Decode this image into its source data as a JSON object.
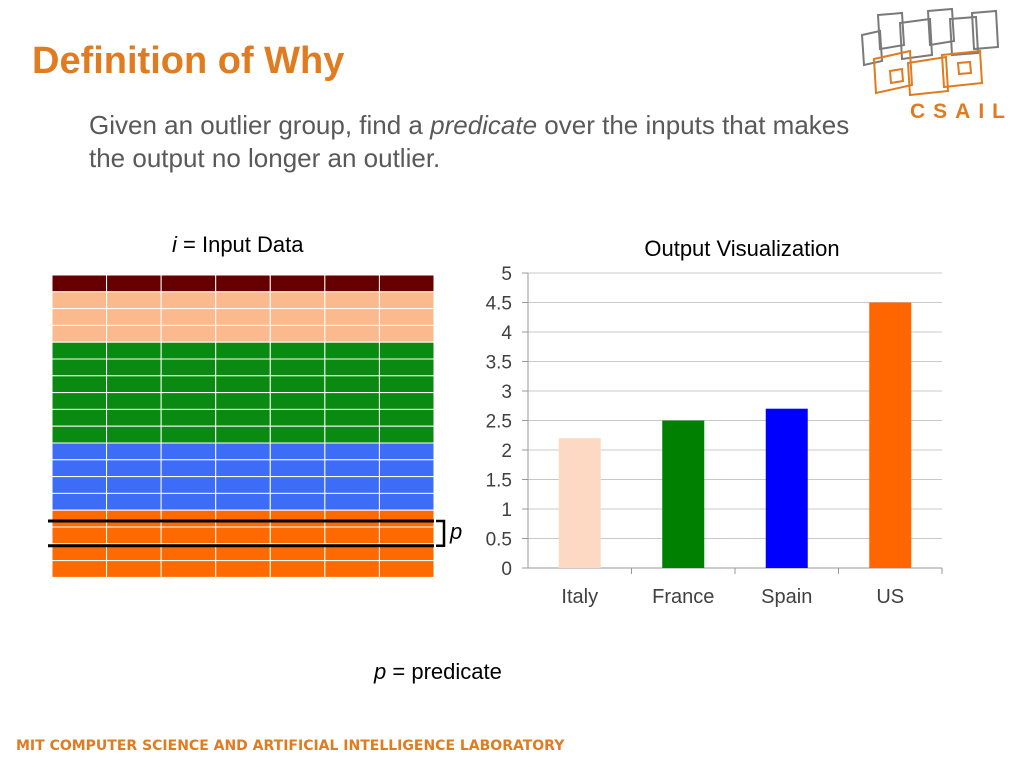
{
  "slide": {
    "title": "Definition of Why",
    "subtitle_pre": "Given an outlier group, find a ",
    "subtitle_em": "predicate",
    "subtitle_post": " over the inputs that makes the output no longer an outlier.",
    "footer": "MIT COMPUTER SCIENCE AND ARTIFICIAL INTELLIGENCE LABORATORY"
  },
  "logo": {
    "text": "CSAIL",
    "color": "#e07b1f"
  },
  "input_data": {
    "label_var": "i",
    "label_eq": " = ",
    "label_text": "Input Data",
    "columns": 7,
    "row_groups": [
      {
        "color": "#660000",
        "rows": 1
      },
      {
        "color": "#fbb98e",
        "rows": 3
      },
      {
        "color": "#0a8a10",
        "rows": 6
      },
      {
        "color": "#3d6df7",
        "rows": 4
      },
      {
        "color": "#ff6a00",
        "rows": 4
      }
    ],
    "predicate_label": "p"
  },
  "predicate_legend": {
    "var": "p",
    "eq": " = ",
    "text": "predicate"
  },
  "chart_data": {
    "type": "bar",
    "title": "Output Visualization",
    "categories": [
      "Italy",
      "France",
      "Spain",
      "US"
    ],
    "values": [
      2.2,
      2.5,
      2.7,
      4.5
    ],
    "colors": [
      "#fdd9c3",
      "#008000",
      "#0000ff",
      "#ff6600"
    ],
    "ylim": [
      0,
      5
    ],
    "yticks": [
      "0",
      "0.5",
      "1",
      "1.5",
      "2",
      "2.5",
      "3",
      "3.5",
      "4",
      "4.5",
      "5"
    ],
    "grid": true
  }
}
